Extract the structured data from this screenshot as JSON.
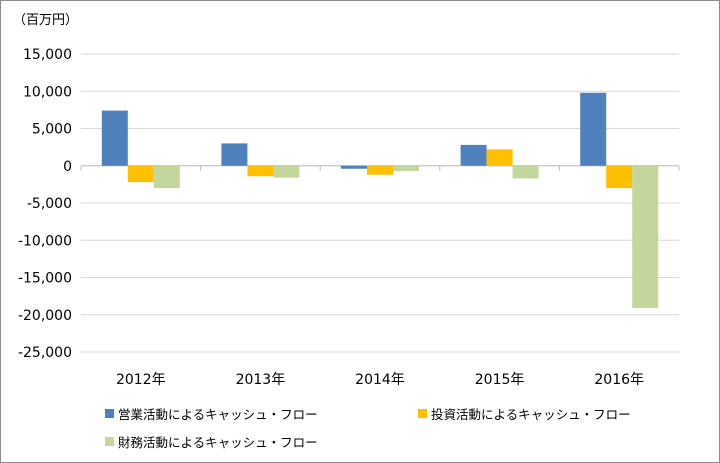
{
  "chart_data": {
    "type": "bar",
    "unit_label": "（百万円）",
    "categories": [
      "2012年",
      "2013年",
      "2014年",
      "2015年",
      "2016年"
    ],
    "series": [
      {
        "name": "営業活動によるキャッシュ・フロー",
        "color": "#4f81bd",
        "values": [
          7400,
          3000,
          -400,
          2800,
          9800
        ]
      },
      {
        "name": "投資活動によるキャッシュ・フロー",
        "color": "#ffc000",
        "values": [
          -2200,
          -1400,
          -1200,
          2200,
          -3000
        ]
      },
      {
        "name": "財務活動によるキャッシュ・フロー",
        "color": "#c3d69b",
        "values": [
          -3000,
          -1600,
          -700,
          -1700,
          -19100
        ]
      }
    ],
    "ylim": [
      -25000,
      15000
    ],
    "yticks": [
      15000,
      10000,
      5000,
      0,
      -5000,
      -10000,
      -15000,
      -20000,
      -25000
    ],
    "ytick_labels": [
      "15,000",
      "10,000",
      "5,000",
      "0",
      "-5,000",
      "-10,000",
      "-15,000",
      "-20,000",
      "-25,000"
    ],
    "grid": true,
    "legend_position": "bottom"
  }
}
